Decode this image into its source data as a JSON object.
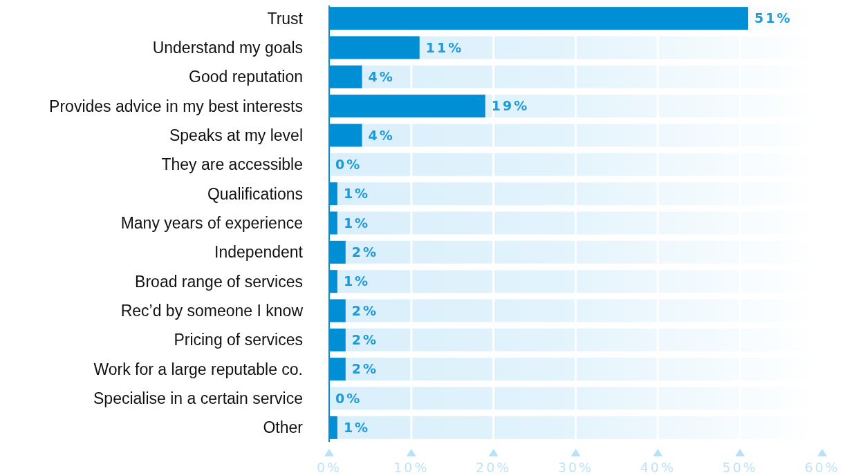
{
  "chart_data": {
    "type": "bar",
    "orientation": "horizontal",
    "categories": [
      "Trust",
      "Understand my goals",
      "Good reputation",
      "Provides advice in my best interests",
      "Speaks at my level",
      "They are accessible",
      "Qualifications",
      "Many years of experience",
      "Independent",
      "Broad range of services",
      "Rec’d by someone I know",
      "Pricing of services",
      "Work for a large reputable co.",
      "Specialise in a certain service",
      "Other"
    ],
    "values": [
      51,
      11,
      4,
      19,
      4,
      0,
      1,
      1,
      2,
      1,
      2,
      2,
      2,
      0,
      1
    ],
    "color": "#008fd5",
    "xlim": [
      0,
      60
    ],
    "xticks": [
      {
        "value": 0,
        "label": "0%"
      },
      {
        "value": 10,
        "label": "10%"
      },
      {
        "value": 20,
        "label": "20%"
      },
      {
        "value": 30,
        "label": "30%"
      },
      {
        "value": 40,
        "label": "40%"
      },
      {
        "value": 50,
        "label": "50%"
      },
      {
        "value": 60,
        "label": "60%"
      }
    ],
    "grid": "x",
    "value_labels": [
      "51%",
      "11%",
      "4%",
      "19%",
      "4%",
      "0%",
      "1%",
      "1%",
      "2%",
      "1%",
      "2%",
      "2%",
      "2%",
      "0%",
      "1%"
    ]
  }
}
